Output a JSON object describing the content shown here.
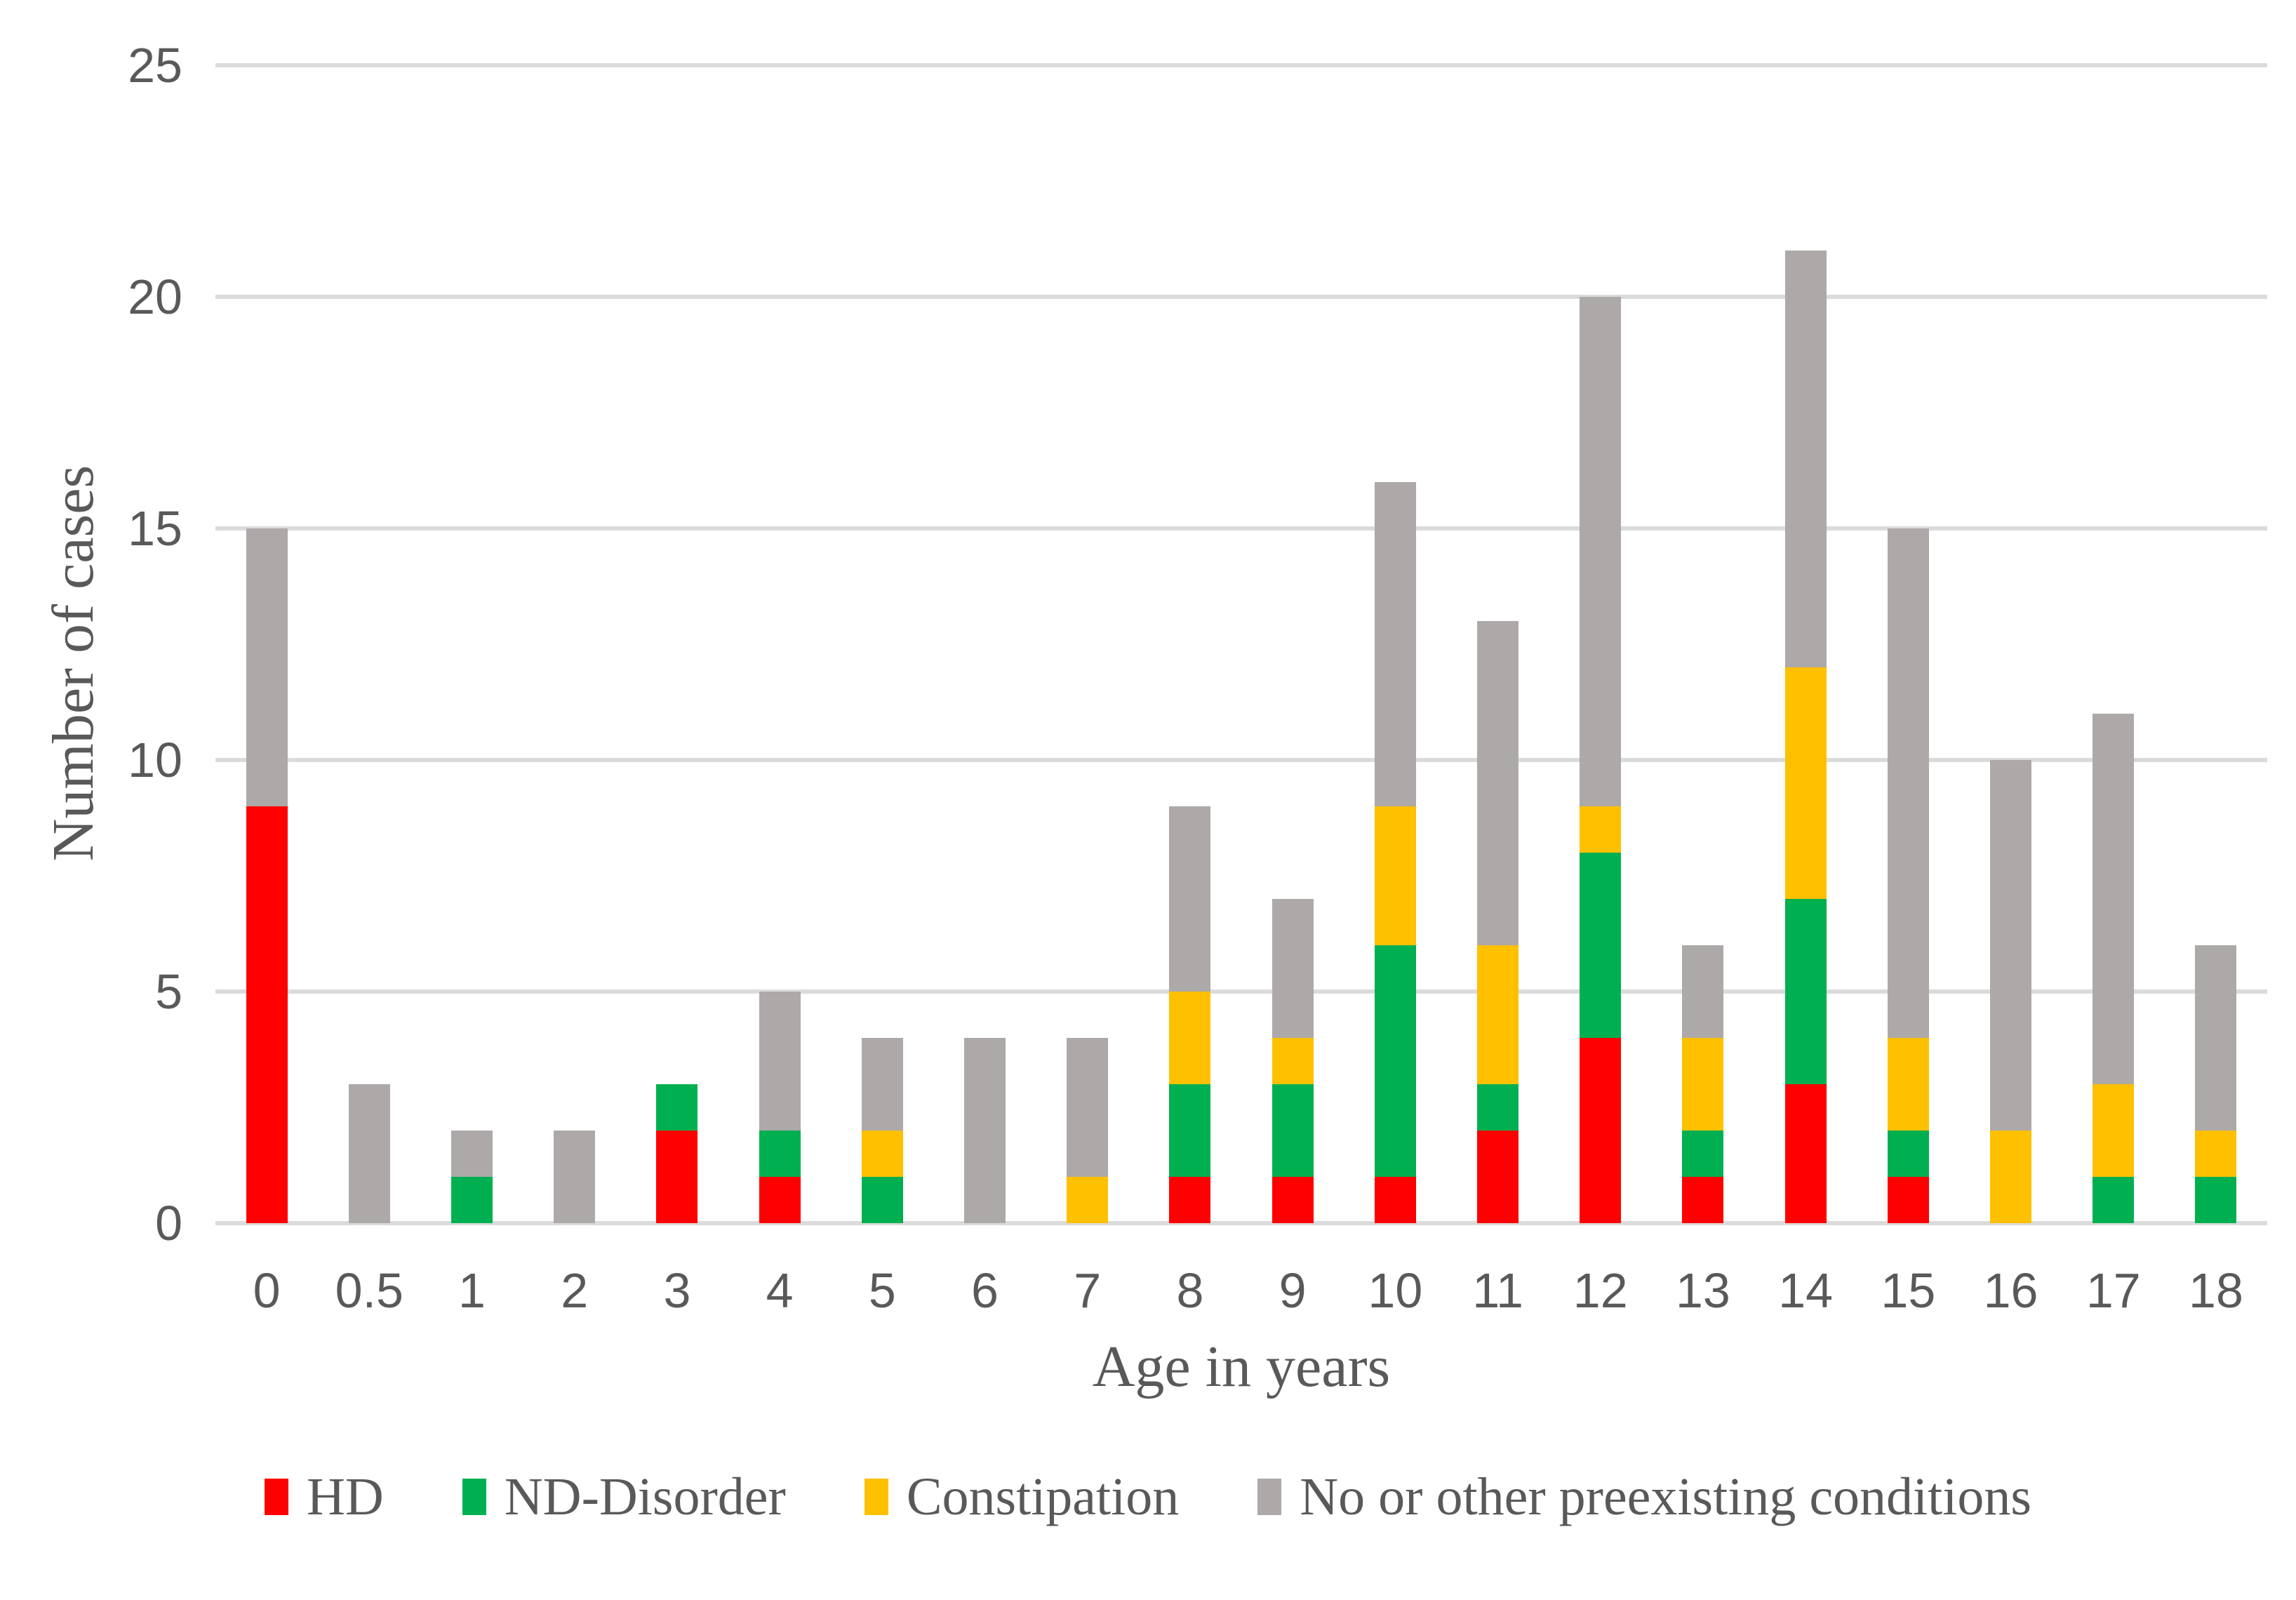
{
  "chart_data": {
    "type": "bar",
    "stacked": true,
    "title": "",
    "xlabel": "Age in years",
    "ylabel": "Number of cases",
    "categories": [
      "0",
      "0.5",
      "1",
      "2",
      "3",
      "4",
      "5",
      "6",
      "7",
      "8",
      "9",
      "10",
      "11",
      "12",
      "13",
      "14",
      "15",
      "16",
      "17",
      "18"
    ],
    "series": [
      {
        "name": "HD",
        "color": "#FF0000",
        "values": [
          9,
          0,
          0,
          0,
          2,
          1,
          0,
          0,
          0,
          1,
          1,
          1,
          2,
          4,
          1,
          3,
          1,
          0,
          0,
          0
        ]
      },
      {
        "name": "ND-Disorder",
        "color": "#00B050",
        "values": [
          0,
          0,
          1,
          0,
          1,
          1,
          1,
          0,
          0,
          2,
          2,
          5,
          1,
          4,
          1,
          4,
          1,
          0,
          1,
          1
        ]
      },
      {
        "name": "Constipation",
        "color": "#FFC000",
        "values": [
          0,
          0,
          0,
          0,
          0,
          0,
          1,
          0,
          1,
          2,
          1,
          3,
          3,
          1,
          2,
          5,
          2,
          2,
          2,
          1
        ]
      },
      {
        "name": "No or other preexisting conditions",
        "color": "#ADA9A9",
        "values": [
          6,
          3,
          1,
          2,
          0,
          3,
          2,
          4,
          3,
          4,
          3,
          7,
          7,
          11,
          2,
          9,
          11,
          8,
          8,
          4
        ]
      }
    ],
    "bar_totals": [
      15,
      3,
      2,
      2,
      3,
      6,
      5,
      4,
      4,
      9,
      7,
      16,
      13,
      20,
      6,
      21,
      15,
      10,
      11,
      6
    ],
    "ylim": [
      0,
      25
    ],
    "yticks": [
      0,
      5,
      10,
      15,
      20,
      25
    ],
    "grid": true,
    "gridline_color": "#DBDBDB",
    "text_color": "#595959",
    "legend_position": "bottom"
  }
}
